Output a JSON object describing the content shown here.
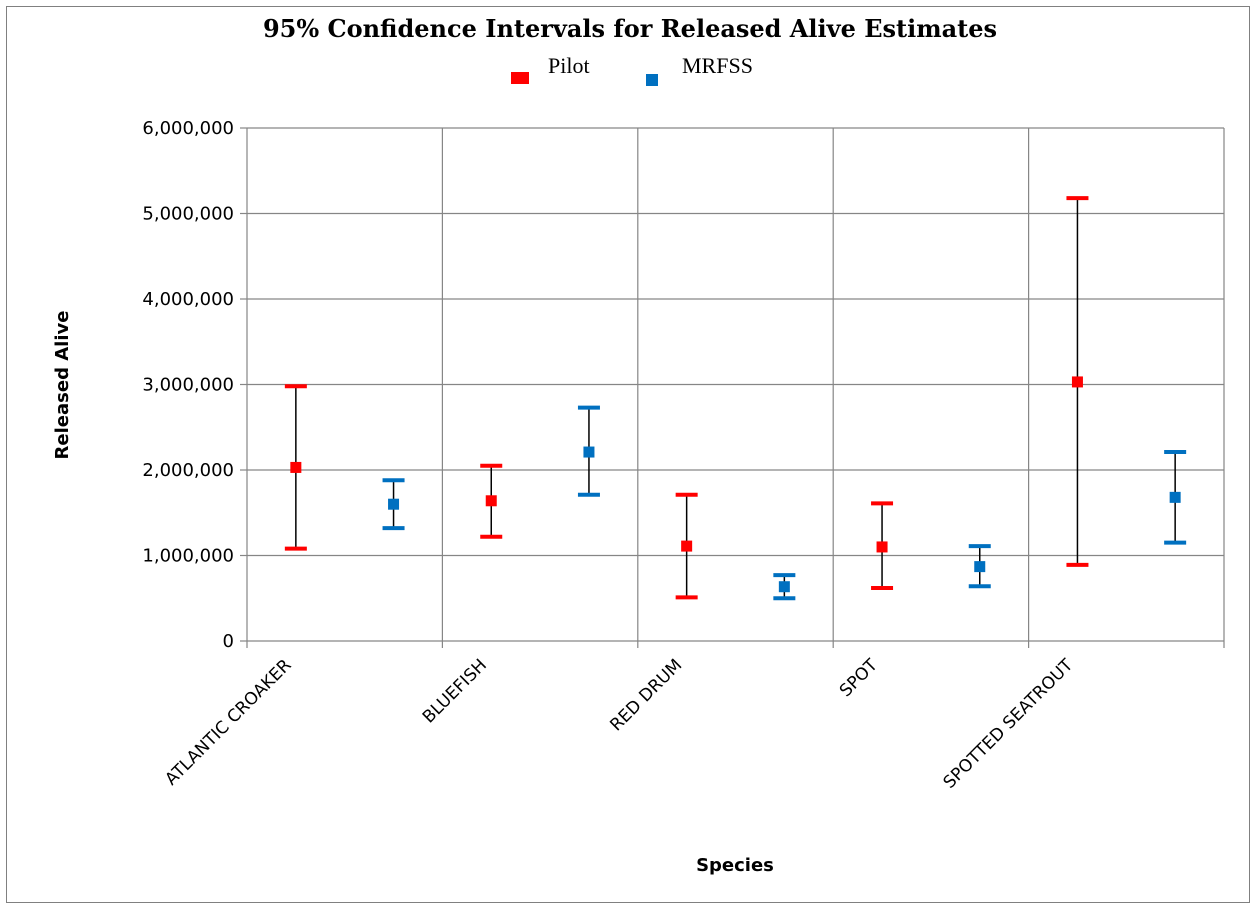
{
  "chart_data": {
    "type": "scatter",
    "title": "95% Confidence Intervals for Released Alive Estimates",
    "xlabel": "Species",
    "ylabel": "Released Alive",
    "ylim": [
      0,
      6000000
    ],
    "yticks": [
      0,
      1000000,
      2000000,
      3000000,
      4000000,
      5000000,
      6000000
    ],
    "ytick_labels": [
      "0",
      "1,000,000",
      "2,000,000",
      "3,000,000",
      "4,000,000",
      "5,000,000",
      "6,000,000"
    ],
    "categories": [
      "ATLANTIC CROAKER",
      "BLUEFISH",
      "RED DRUM",
      "SPOT",
      "SPOTTED SEATROUT"
    ],
    "grid": true,
    "legend_position": "top-center",
    "series": [
      {
        "name": "Pilot",
        "color": "#ff0000",
        "estimate": [
          2030000,
          1640000,
          1110000,
          1100000,
          3030000
        ],
        "lower": [
          1080000,
          1220000,
          510000,
          620000,
          890000
        ],
        "upper": [
          2980000,
          2050000,
          1710000,
          1610000,
          5180000
        ]
      },
      {
        "name": "MRFSS",
        "color": "#0070c0",
        "estimate": [
          1600000,
          2210000,
          635000,
          870000,
          1680000
        ],
        "lower": [
          1320000,
          1710000,
          500000,
          640000,
          1150000
        ],
        "upper": [
          1880000,
          2730000,
          770000,
          1110000,
          2210000
        ]
      }
    ]
  }
}
